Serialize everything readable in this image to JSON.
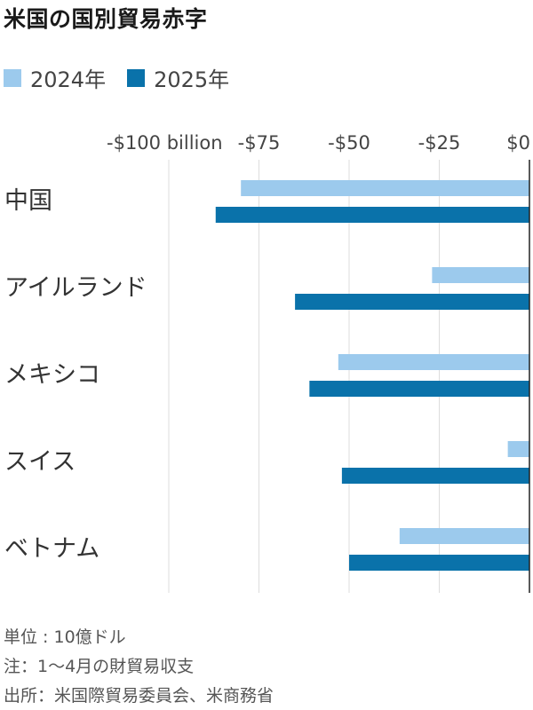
{
  "title": "米国の国別貿易赤字",
  "legend": [
    {
      "label": "2024年",
      "color": "#9ccaed"
    },
    {
      "label": "2025年",
      "color": "#0a72aa"
    }
  ],
  "chart_data": {
    "type": "bar",
    "orientation": "horizontal",
    "categories": [
      "中国",
      "アイルランド",
      "メキシコ",
      "スイス",
      "ベトナム"
    ],
    "series": [
      {
        "name": "2024年",
        "color": "#9ccaed",
        "values": [
          -80,
          -27,
          -53,
          -6,
          -36
        ]
      },
      {
        "name": "2025年",
        "color": "#0a72aa",
        "values": [
          -87,
          -65,
          -61,
          -52,
          -50
        ]
      }
    ],
    "xlim": [
      -100,
      0
    ],
    "ticks": [
      {
        "value": -100,
        "label": "-$100 billion"
      },
      {
        "value": -75,
        "label": "-$75"
      },
      {
        "value": -50,
        "label": "-$50"
      },
      {
        "value": -25,
        "label": "-$25"
      },
      {
        "value": 0,
        "label": "$0"
      }
    ],
    "grid": true
  },
  "footnotes": {
    "unit": "単位 : 10億ドル",
    "note": "注：1～4月の財貿易収支",
    "source": "出所：米国際貿易委員会、米商務省"
  }
}
